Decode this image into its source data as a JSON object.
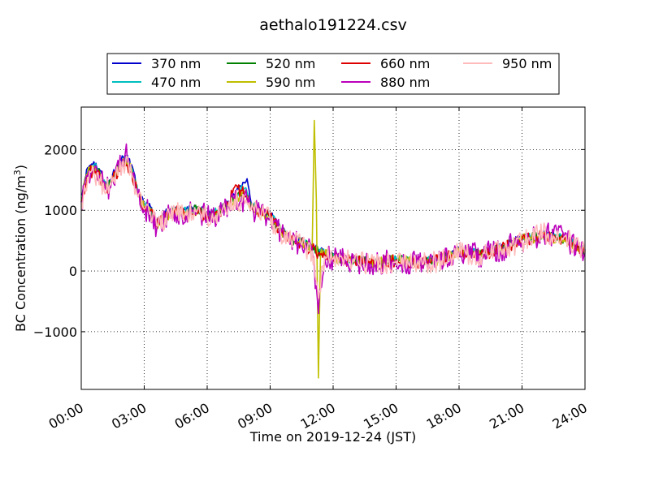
{
  "chart_data": {
    "type": "line",
    "title": "aethalo191224.csv",
    "xlabel": "Time on 2019-12-24 (JST)",
    "ylabel": "BC Concentration (ng/m",
    "ylabel_sup": "3",
    "ylabel_end": ")",
    "x_unit": "hours",
    "xlim": [
      0,
      24
    ],
    "ylim": [
      -1950,
      2700
    ],
    "x_ticks": [
      {
        "value": 0,
        "label": "00:00"
      },
      {
        "value": 3,
        "label": "03:00"
      },
      {
        "value": 6,
        "label": "06:00"
      },
      {
        "value": 9,
        "label": "09:00"
      },
      {
        "value": 12,
        "label": "12:00"
      },
      {
        "value": 15,
        "label": "15:00"
      },
      {
        "value": 18,
        "label": "18:00"
      },
      {
        "value": 21,
        "label": "21:00"
      },
      {
        "value": 24,
        "label": "24:00"
      }
    ],
    "y_ticks": [
      {
        "value": -1000,
        "label": "−1000"
      },
      {
        "value": 0,
        "label": "0"
      },
      {
        "value": 1000,
        "label": "1000"
      },
      {
        "value": 2000,
        "label": "2000"
      }
    ],
    "grid": "dotted",
    "legend_position": "top, above plot",
    "series": [
      {
        "name": "370 nm",
        "color": "#0000cc",
        "noise": 60,
        "seed": 11,
        "x": [
          0,
          0.3,
          0.6,
          0.9,
          1.2,
          1.5,
          1.8,
          2.1,
          2.4,
          2.7,
          3.0,
          3.3,
          3.6,
          4.0,
          4.5,
          5,
          5.5,
          6,
          6.5,
          7,
          7.3,
          7.6,
          7.9,
          8.1,
          8.4,
          8.7,
          9,
          9.5,
          10,
          10.5,
          11,
          11.3,
          11.6,
          12,
          13,
          14,
          15,
          16,
          17,
          18,
          19,
          20,
          21,
          22,
          23,
          24
        ],
        "values": [
          1250,
          1700,
          1800,
          1650,
          1400,
          1600,
          1800,
          1900,
          1750,
          1300,
          1100,
          1050,
          800,
          950,
          1050,
          1000,
          1050,
          950,
          1000,
          1150,
          1250,
          1400,
          1520,
          1100,
          1050,
          1000,
          950,
          700,
          550,
          500,
          400,
          350,
          300,
          250,
          200,
          150,
          200,
          150,
          200,
          350,
          300,
          400,
          550,
          600,
          550,
          350
        ]
      },
      {
        "name": "470 nm",
        "color": "#00bfbf",
        "noise": 70,
        "seed": 23,
        "x": [
          0,
          0.3,
          0.6,
          0.9,
          1.2,
          1.5,
          1.8,
          2.1,
          2.4,
          2.7,
          3.0,
          3.3,
          3.6,
          4.0,
          4.5,
          5,
          5.5,
          6,
          6.5,
          7,
          7.3,
          7.6,
          7.9,
          8.1,
          8.4,
          8.7,
          9,
          9.5,
          10,
          10.5,
          11,
          11.3,
          11.6,
          12,
          13,
          14,
          15,
          16,
          17,
          18,
          19,
          20,
          21,
          22,
          23,
          24
        ],
        "values": [
          1200,
          1650,
          1750,
          1600,
          1380,
          1550,
          1750,
          1850,
          1700,
          1280,
          1080,
          1030,
          780,
          930,
          1030,
          980,
          1030,
          930,
          980,
          1120,
          1220,
          1350,
          1300,
          1080,
          1030,
          980,
          930,
          680,
          530,
          480,
          380,
          330,
          290,
          240,
          190,
          150,
          200,
          150,
          200,
          340,
          290,
          390,
          540,
          590,
          540,
          340
        ]
      },
      {
        "name": "520 nm",
        "color": "#008000",
        "noise": 80,
        "seed": 37,
        "x": [
          0,
          0.3,
          0.6,
          0.9,
          1.2,
          1.5,
          1.8,
          2.1,
          2.4,
          2.7,
          3.0,
          3.3,
          3.6,
          4.0,
          4.5,
          5,
          5.5,
          6,
          6.5,
          7,
          7.3,
          7.6,
          7.9,
          8.1,
          8.4,
          8.7,
          9,
          9.5,
          10,
          10.5,
          11,
          11.3,
          11.6,
          12,
          13,
          14,
          15,
          16,
          17,
          18,
          19,
          20,
          21,
          22,
          23,
          24
        ],
        "values": [
          1180,
          1620,
          1720,
          1580,
          1360,
          1530,
          1720,
          1820,
          1680,
          1260,
          1060,
          1010,
          770,
          910,
          1010,
          960,
          1010,
          920,
          970,
          1100,
          1200,
          1280,
          1250,
          1060,
          1010,
          960,
          910,
          660,
          520,
          470,
          370,
          320,
          280,
          230,
          180,
          140,
          190,
          140,
          190,
          330,
          280,
          380,
          530,
          580,
          530,
          330
        ]
      },
      {
        "name": "590 nm",
        "color": "#bfbf00",
        "noise": 90,
        "seed": 41,
        "x": [
          0,
          0.3,
          0.6,
          0.9,
          1.2,
          1.5,
          1.8,
          2.1,
          2.4,
          2.7,
          3.0,
          3.3,
          3.6,
          4.0,
          4.5,
          5,
          5.5,
          6,
          6.5,
          7,
          7.3,
          7.6,
          7.9,
          8.1,
          8.4,
          8.7,
          9,
          9.5,
          10,
          10.5,
          11.0,
          11.1,
          11.2,
          11.3,
          11.4,
          11.5,
          11.7,
          12,
          13,
          14,
          15,
          16,
          17,
          18,
          19,
          20,
          21,
          22,
          23,
          24
        ],
        "values": [
          1170,
          1600,
          1700,
          1560,
          1350,
          1510,
          1700,
          1800,
          1660,
          1250,
          1050,
          1000,
          760,
          900,
          1000,
          950,
          1000,
          910,
          960,
          1090,
          1190,
          1260,
          1230,
          1050,
          1000,
          950,
          900,
          650,
          510,
          460,
          360,
          2480,
          1200,
          -1760,
          300,
          250,
          280,
          220,
          170,
          130,
          180,
          130,
          180,
          320,
          270,
          370,
          520,
          570,
          520,
          320
        ]
      },
      {
        "name": "660 nm",
        "color": "#dd0000",
        "noise": 110,
        "seed": 53,
        "x": [
          0,
          0.3,
          0.6,
          0.9,
          1.2,
          1.5,
          1.8,
          2.1,
          2.4,
          2.7,
          3.0,
          3.3,
          3.6,
          4.0,
          4.5,
          5,
          5.5,
          6,
          6.5,
          7,
          7.3,
          7.6,
          7.9,
          8.1,
          8.4,
          8.7,
          9,
          9.5,
          10,
          10.5,
          11,
          11.3,
          11.6,
          12,
          13,
          14,
          15,
          16,
          17,
          18,
          19,
          20,
          21,
          22,
          23,
          24
        ],
        "values": [
          1160,
          1580,
          1680,
          1540,
          1340,
          1500,
          1680,
          1780,
          1640,
          1240,
          1040,
          990,
          750,
          890,
          990,
          940,
          990,
          900,
          950,
          1080,
          1380,
          1330,
          1200,
          1040,
          990,
          940,
          890,
          640,
          500,
          450,
          350,
          300,
          260,
          220,
          170,
          130,
          180,
          130,
          180,
          320,
          270,
          360,
          510,
          560,
          520,
          330
        ]
      },
      {
        "name": "880 nm",
        "color": "#bb00bb",
        "noise": 200,
        "seed": 67,
        "x": [
          0,
          0.3,
          0.6,
          0.9,
          1.2,
          1.5,
          1.8,
          2.1,
          2.4,
          2.7,
          3.0,
          3.3,
          3.6,
          4.0,
          4.5,
          5,
          5.5,
          6,
          6.5,
          7,
          7.3,
          7.6,
          7.9,
          8.1,
          8.4,
          8.7,
          9,
          9.5,
          10,
          10.5,
          11,
          11.3,
          11.6,
          12,
          13,
          14,
          15,
          16,
          17,
          18,
          19,
          20,
          21,
          22,
          23,
          24
        ],
        "values": [
          1150,
          1560,
          1650,
          1520,
          1330,
          1490,
          1660,
          1950,
          1620,
          1230,
          1030,
          980,
          700,
          880,
          980,
          930,
          980,
          890,
          940,
          1070,
          1200,
          1150,
          1150,
          1030,
          980,
          930,
          880,
          630,
          490,
          440,
          340,
          -700,
          250,
          210,
          160,
          120,
          170,
          120,
          170,
          310,
          260,
          350,
          500,
          600,
          550,
          300
        ]
      },
      {
        "name": "950 nm",
        "color": "#ffbbbb",
        "noise": 180,
        "seed": 79,
        "x": [
          0,
          0.3,
          0.6,
          0.9,
          1.2,
          1.5,
          1.8,
          2.1,
          2.4,
          2.7,
          3.0,
          3.3,
          3.6,
          4.0,
          4.5,
          5,
          5.5,
          6,
          6.5,
          7,
          7.3,
          7.6,
          7.9,
          8.1,
          8.4,
          8.7,
          9,
          9.5,
          10,
          10.5,
          11,
          11.3,
          11.6,
          12,
          13,
          14,
          15,
          16,
          17,
          18,
          19,
          20,
          21,
          22,
          23,
          24
        ],
        "values": [
          1140,
          1540,
          1620,
          1500,
          1320,
          1470,
          1640,
          1760,
          1600,
          1220,
          1020,
          970,
          740,
          870,
          970,
          920,
          970,
          880,
          930,
          1060,
          1180,
          1130,
          1120,
          1020,
          970,
          920,
          870,
          620,
          480,
          430,
          330,
          -450,
          240,
          200,
          150,
          110,
          160,
          110,
          160,
          300,
          250,
          340,
          490,
          620,
          560,
          290
        ]
      }
    ]
  }
}
